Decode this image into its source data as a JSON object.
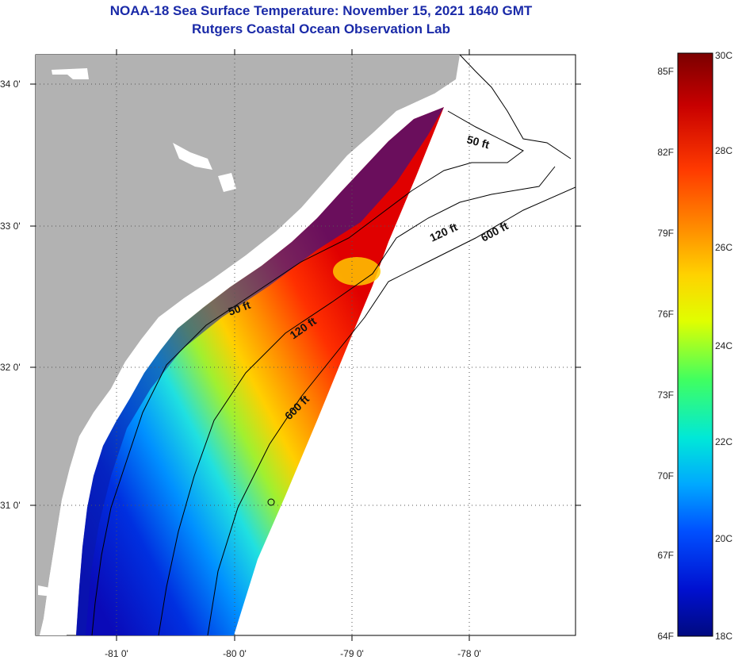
{
  "header": {
    "title": "NOAA-18 Sea Surface Temperature:  November 15, 2021 1640 GMT",
    "subtitle": "Rutgers Coastal Ocean Observation Lab"
  },
  "map": {
    "lat_labels": [
      "34 0'",
      "33 0'",
      "32 0'",
      "31 0'"
    ],
    "lon_labels": [
      "-81 0'",
      "-80 0'",
      "-79 0'",
      "-78 0'"
    ],
    "contours": [
      "50 ft",
      "120 ft",
      "600 ft",
      "50 ft",
      "120 ft",
      "600 ft"
    ],
    "colors": {
      "land": "#b2b2b2",
      "no_data": "#ffffff"
    }
  },
  "colorbar": {
    "fahrenheit": [
      "85F",
      "82F",
      "79F",
      "76F",
      "73F",
      "70F",
      "67F",
      "64F"
    ],
    "celsius": [
      "30C",
      "28C",
      "26C",
      "24C",
      "22C",
      "20C",
      "18C"
    ],
    "stops": [
      "#7b0000",
      "#c80000",
      "#ff3a00",
      "#ff8c00",
      "#ffd200",
      "#c8ff00",
      "#40ff60",
      "#00e8d8",
      "#00a8ff",
      "#0050ff",
      "#0010d0",
      "#000a80"
    ]
  }
}
